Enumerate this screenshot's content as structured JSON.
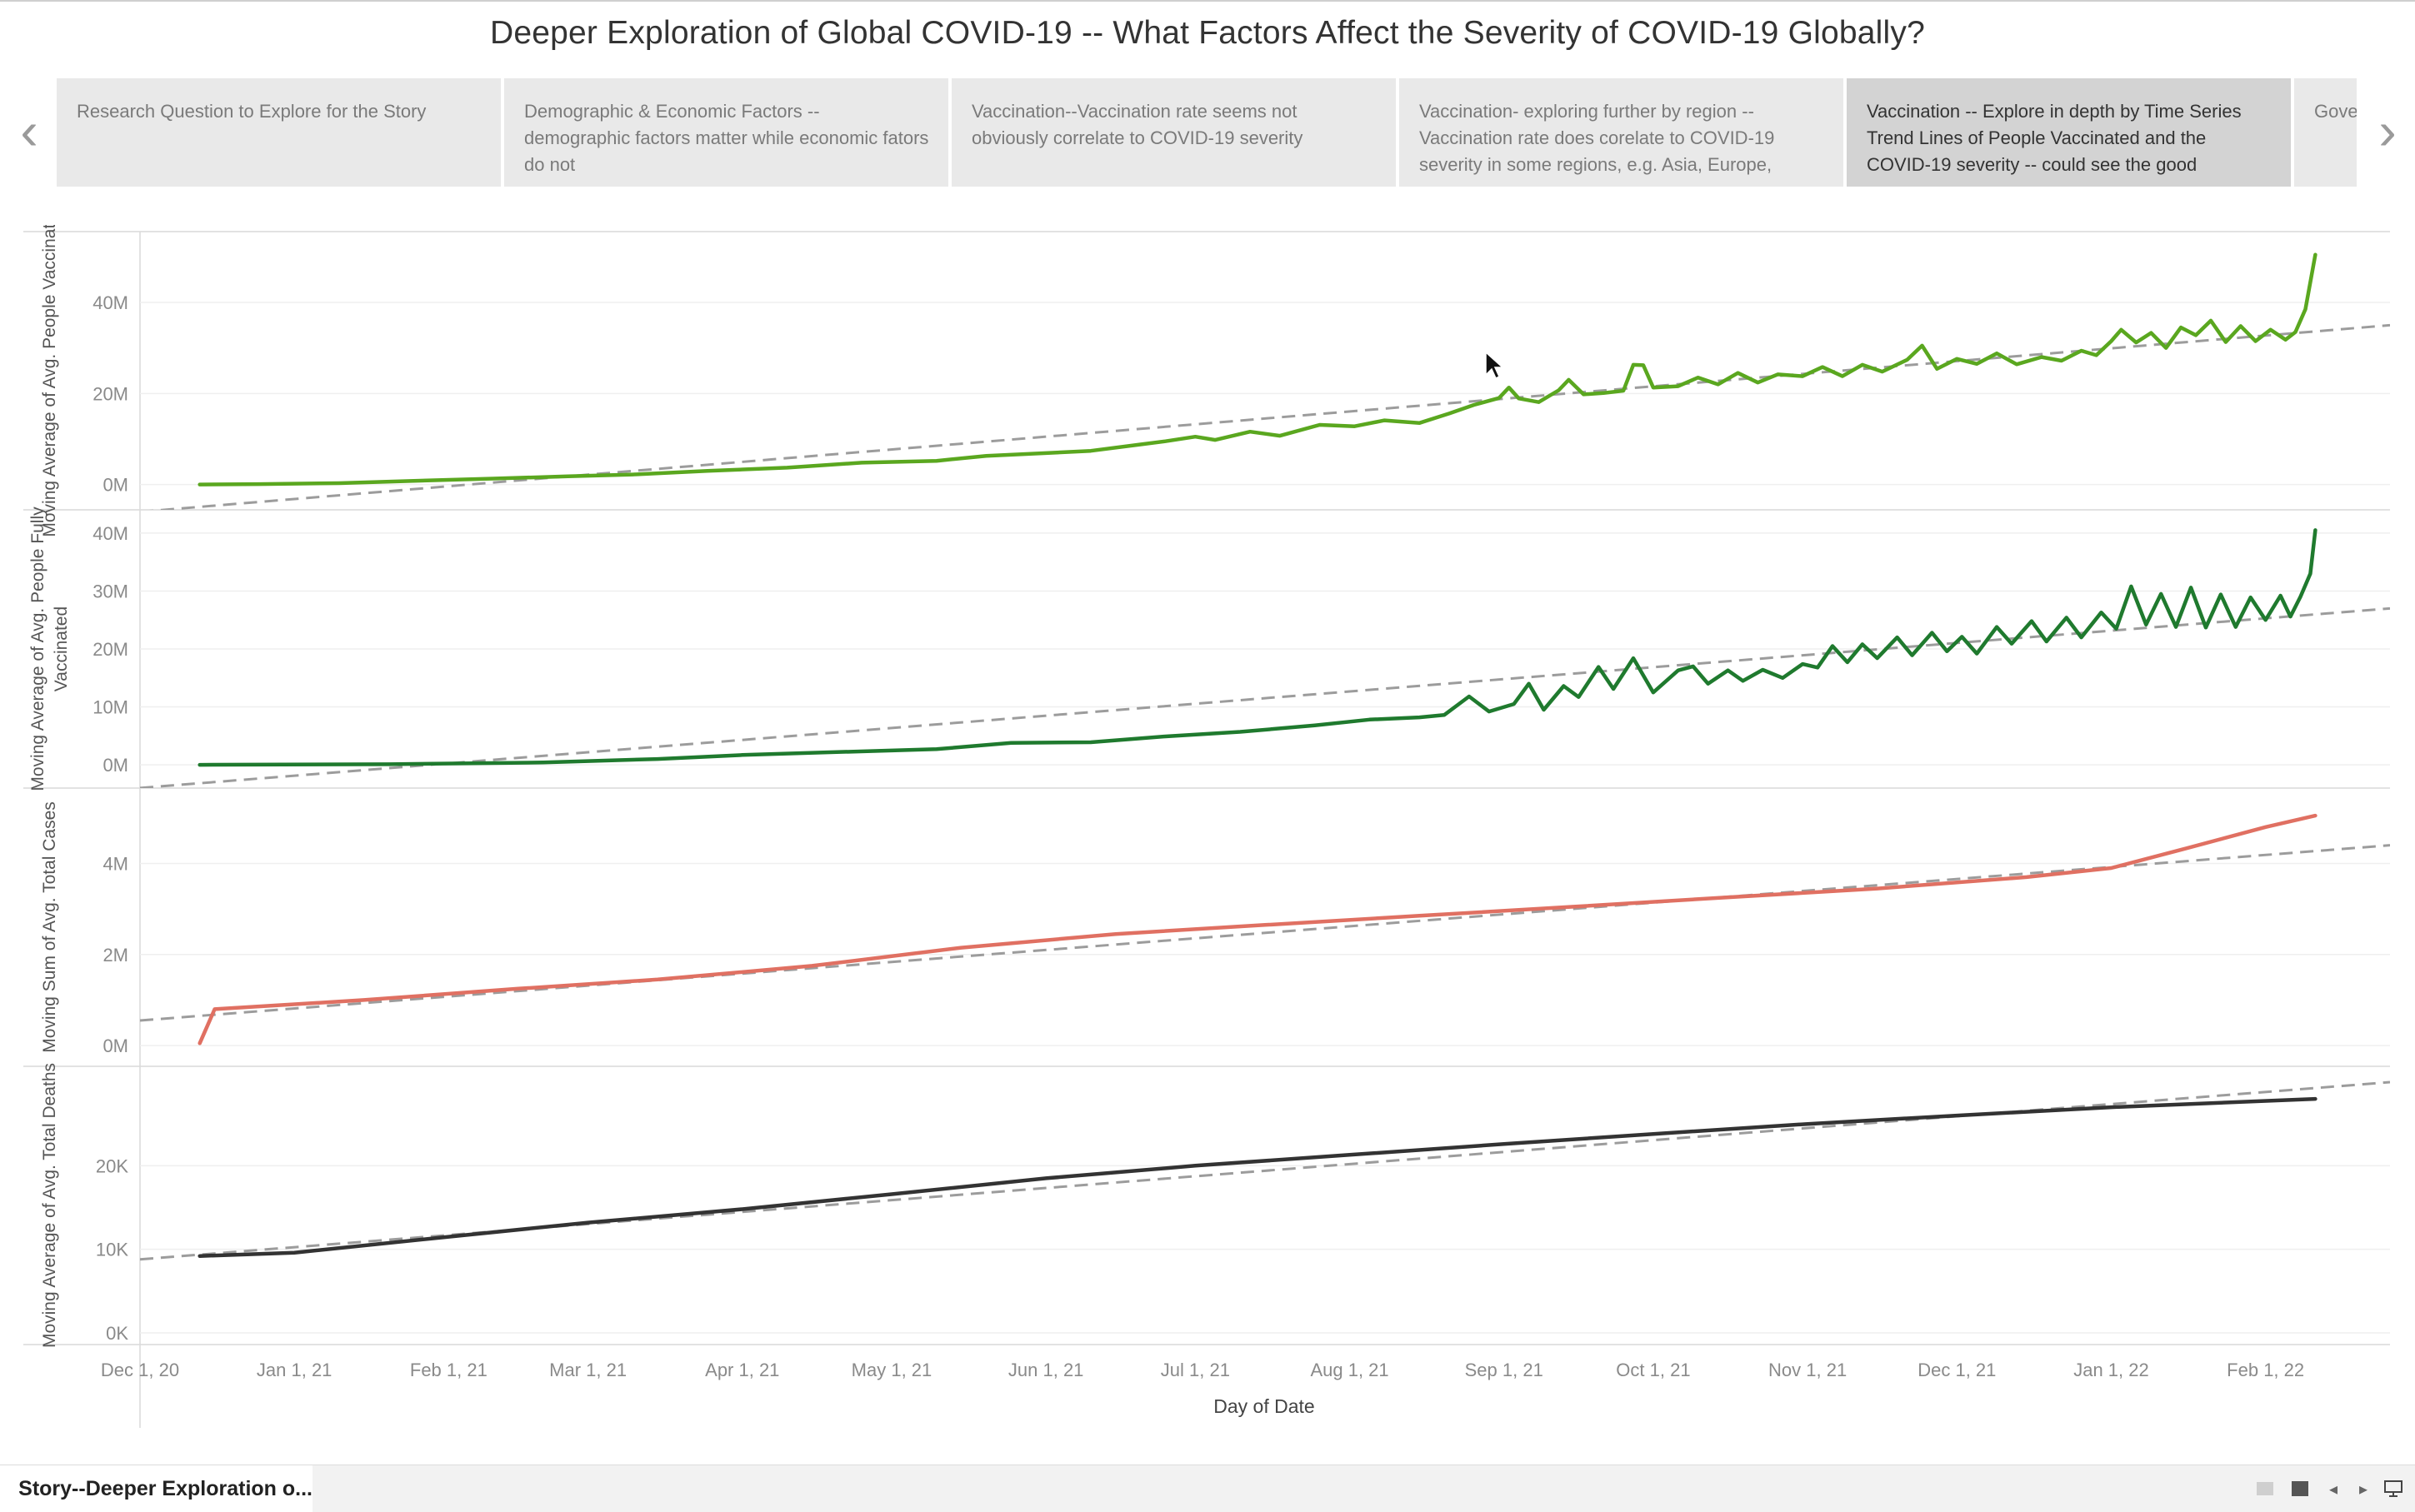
{
  "title": "Deeper Exploration of Global COVID-19 -- What Factors Affect the Severity of COVID-19 Globally?",
  "story_points": [
    {
      "label": "Research Question to Explore for the Story"
    },
    {
      "label": "Demographic & Economic Factors -- demographic factors matter while economic fators do not"
    },
    {
      "label": "Vaccination--Vaccination rate seems not obviously correlate to COVID-19 severity"
    },
    {
      "label": "Vaccination- exploring further by region -- Vaccination rate does corelate to COVID-19 severity in some regions, e.g. Asia, Europe,"
    },
    {
      "label": "Vaccination -- Explore in depth by Time Series Trend Lines of People Vaccinated and the COVID-19 severity -- could see the good",
      "active": true
    },
    {
      "label": "Government measures ... severity"
    }
  ],
  "nav": {
    "prev_icon": "chevron-left-icon",
    "next_icon": "chevron-right-icon"
  },
  "footer": {
    "story_tab_label": "Story--Deeper Exploration o...",
    "story_icon": "book-icon"
  },
  "chart_data": {
    "type": "line",
    "x_label": "Day of Date",
    "x_range": [
      "2020-12-01",
      "2022-02-26"
    ],
    "x_ticks": [
      {
        "date": "2020-12-01",
        "label": "Dec 1, 20"
      },
      {
        "date": "2021-01-01",
        "label": "Jan 1, 21"
      },
      {
        "date": "2021-02-01",
        "label": "Feb 1, 21"
      },
      {
        "date": "2021-03-01",
        "label": "Mar 1, 21"
      },
      {
        "date": "2021-04-01",
        "label": "Apr 1, 21"
      },
      {
        "date": "2021-05-01",
        "label": "May 1, 21"
      },
      {
        "date": "2021-06-01",
        "label": "Jun 1, 21"
      },
      {
        "date": "2021-07-01",
        "label": "Jul 1, 21"
      },
      {
        "date": "2021-08-01",
        "label": "Aug 1, 21"
      },
      {
        "date": "2021-09-01",
        "label": "Sep 1, 21"
      },
      {
        "date": "2021-10-01",
        "label": "Oct 1, 21"
      },
      {
        "date": "2021-11-01",
        "label": "Nov 1, 21"
      },
      {
        "date": "2021-12-01",
        "label": "Dec 1, 21"
      },
      {
        "date": "2022-01-01",
        "label": "Jan 1, 22"
      },
      {
        "date": "2022-02-01",
        "label": "Feb 1, 22"
      }
    ],
    "panels": [
      {
        "ylabel": "Moving Average of Avg. People Vaccinated",
        "ylim": [
          -3000000,
          53000000
        ],
        "yticks": [
          {
            "value": 0,
            "label": "0M"
          },
          {
            "value": 20000000,
            "label": "20M"
          },
          {
            "value": 40000000,
            "label": "40M"
          }
        ],
        "color": "#5aa71f",
        "points": [
          [
            "2020-12-13",
            0
          ],
          [
            "2020-12-25",
            100000
          ],
          [
            "2021-01-10",
            300000
          ],
          [
            "2021-01-25",
            800000
          ],
          [
            "2021-02-10",
            1300000
          ],
          [
            "2021-02-25",
            1800000
          ],
          [
            "2021-03-10",
            2200000
          ],
          [
            "2021-03-25",
            3000000
          ],
          [
            "2021-04-10",
            3700000
          ],
          [
            "2021-04-25",
            4800000
          ],
          [
            "2021-05-10",
            5200000
          ],
          [
            "2021-05-20",
            6300000
          ],
          [
            "2021-06-01",
            6900000
          ],
          [
            "2021-06-10",
            7400000
          ],
          [
            "2021-06-20",
            8800000
          ],
          [
            "2021-06-25",
            9500000
          ],
          [
            "2021-07-01",
            10500000
          ],
          [
            "2021-07-05",
            9800000
          ],
          [
            "2021-07-12",
            11600000
          ],
          [
            "2021-07-18",
            10700000
          ],
          [
            "2021-07-26",
            13100000
          ],
          [
            "2021-08-02",
            12800000
          ],
          [
            "2021-08-08",
            14100000
          ],
          [
            "2021-08-15",
            13500000
          ],
          [
            "2021-08-21",
            15600000
          ],
          [
            "2021-08-26",
            17500000
          ],
          [
            "2021-08-31",
            19000000
          ],
          [
            "2021-09-02",
            21300000
          ],
          [
            "2021-09-04",
            18900000
          ],
          [
            "2021-09-08",
            18100000
          ],
          [
            "2021-09-12",
            20700000
          ],
          [
            "2021-09-14",
            23000000
          ],
          [
            "2021-09-17",
            19800000
          ],
          [
            "2021-09-21",
            20100000
          ],
          [
            "2021-09-25",
            20600000
          ],
          [
            "2021-09-27",
            26300000
          ],
          [
            "2021-09-29",
            26200000
          ],
          [
            "2021-10-01",
            21300000
          ],
          [
            "2021-10-06",
            21600000
          ],
          [
            "2021-10-10",
            23500000
          ],
          [
            "2021-10-14",
            22000000
          ],
          [
            "2021-10-18",
            24500000
          ],
          [
            "2021-10-22",
            22400000
          ],
          [
            "2021-10-26",
            24200000
          ],
          [
            "2021-10-31",
            23800000
          ],
          [
            "2021-11-04",
            25800000
          ],
          [
            "2021-11-08",
            23800000
          ],
          [
            "2021-11-12",
            26300000
          ],
          [
            "2021-11-16",
            24800000
          ],
          [
            "2021-11-21",
            27400000
          ],
          [
            "2021-11-24",
            30500000
          ],
          [
            "2021-11-27",
            25400000
          ],
          [
            "2021-12-01",
            27600000
          ],
          [
            "2021-12-05",
            26500000
          ],
          [
            "2021-12-09",
            28800000
          ],
          [
            "2021-12-13",
            26400000
          ],
          [
            "2021-12-18",
            28000000
          ],
          [
            "2021-12-22",
            27200000
          ],
          [
            "2021-12-26",
            29400000
          ],
          [
            "2021-12-29",
            28400000
          ],
          [
            "2022-01-01",
            31500000
          ],
          [
            "2022-01-03",
            34000000
          ],
          [
            "2022-01-06",
            31200000
          ],
          [
            "2022-01-09",
            33300000
          ],
          [
            "2022-01-12",
            30000000
          ],
          [
            "2022-01-15",
            34500000
          ],
          [
            "2022-01-18",
            32800000
          ],
          [
            "2022-01-21",
            36000000
          ],
          [
            "2022-01-24",
            31300000
          ],
          [
            "2022-01-27",
            34800000
          ],
          [
            "2022-01-30",
            31500000
          ],
          [
            "2022-02-02",
            34000000
          ],
          [
            "2022-02-05",
            31800000
          ],
          [
            "2022-02-07",
            33500000
          ],
          [
            "2022-02-09",
            38500000
          ],
          [
            "2022-02-11",
            50500000
          ]
        ],
        "trend": [
          [
            "2020-12-01",
            -6000000
          ],
          [
            "2022-02-26",
            35000000
          ]
        ]
      },
      {
        "ylabel": "Moving Average of Avg. People Fully Vaccinated",
        "ylim": [
          -2000000,
          42000000
        ],
        "yticks": [
          {
            "value": 0,
            "label": "0M"
          },
          {
            "value": 10000000,
            "label": "10M"
          },
          {
            "value": 20000000,
            "label": "20M"
          },
          {
            "value": 30000000,
            "label": "30M"
          },
          {
            "value": 40000000,
            "label": "40M"
          }
        ],
        "color": "#1f7a2e",
        "points": [
          [
            "2020-12-13",
            0
          ],
          [
            "2021-01-20",
            100000
          ],
          [
            "2021-02-20",
            400000
          ],
          [
            "2021-03-15",
            1000000
          ],
          [
            "2021-04-01",
            1700000
          ],
          [
            "2021-04-20",
            2200000
          ],
          [
            "2021-05-10",
            2700000
          ],
          [
            "2021-05-25",
            3800000
          ],
          [
            "2021-06-10",
            3900000
          ],
          [
            "2021-06-25",
            4900000
          ],
          [
            "2021-07-10",
            5700000
          ],
          [
            "2021-07-25",
            6800000
          ],
          [
            "2021-08-05",
            7800000
          ],
          [
            "2021-08-15",
            8200000
          ],
          [
            "2021-08-20",
            8600000
          ],
          [
            "2021-08-25",
            11800000
          ],
          [
            "2021-08-29",
            9200000
          ],
          [
            "2021-09-03",
            10500000
          ],
          [
            "2021-09-06",
            14000000
          ],
          [
            "2021-09-09",
            9500000
          ],
          [
            "2021-09-13",
            13600000
          ],
          [
            "2021-09-16",
            11700000
          ],
          [
            "2021-09-20",
            16900000
          ],
          [
            "2021-09-23",
            13100000
          ],
          [
            "2021-09-27",
            18400000
          ],
          [
            "2021-10-01",
            12500000
          ],
          [
            "2021-10-06",
            16300000
          ],
          [
            "2021-10-09",
            17000000
          ],
          [
            "2021-10-12",
            14000000
          ],
          [
            "2021-10-16",
            16300000
          ],
          [
            "2021-10-19",
            14500000
          ],
          [
            "2021-10-23",
            16400000
          ],
          [
            "2021-10-27",
            15000000
          ],
          [
            "2021-10-31",
            17400000
          ],
          [
            "2021-11-03",
            16800000
          ],
          [
            "2021-11-06",
            20500000
          ],
          [
            "2021-11-09",
            17700000
          ],
          [
            "2021-11-12",
            20800000
          ],
          [
            "2021-11-15",
            18400000
          ],
          [
            "2021-11-19",
            22000000
          ],
          [
            "2021-11-22",
            18900000
          ],
          [
            "2021-11-26",
            22800000
          ],
          [
            "2021-11-29",
            19600000
          ],
          [
            "2021-12-02",
            22100000
          ],
          [
            "2021-12-05",
            19200000
          ],
          [
            "2021-12-09",
            23800000
          ],
          [
            "2021-12-12",
            20900000
          ],
          [
            "2021-12-16",
            24800000
          ],
          [
            "2021-12-19",
            21300000
          ],
          [
            "2021-12-23",
            25400000
          ],
          [
            "2021-12-26",
            22000000
          ],
          [
            "2021-12-30",
            26300000
          ],
          [
            "2022-01-02",
            23500000
          ],
          [
            "2022-01-05",
            30800000
          ],
          [
            "2022-01-08",
            24200000
          ],
          [
            "2022-01-11",
            29500000
          ],
          [
            "2022-01-14",
            23800000
          ],
          [
            "2022-01-17",
            30600000
          ],
          [
            "2022-01-20",
            23700000
          ],
          [
            "2022-01-23",
            29400000
          ],
          [
            "2022-01-26",
            23800000
          ],
          [
            "2022-01-29",
            28900000
          ],
          [
            "2022-02-01",
            25000000
          ],
          [
            "2022-02-04",
            29200000
          ],
          [
            "2022-02-06",
            25600000
          ],
          [
            "2022-02-08",
            29000000
          ],
          [
            "2022-02-10",
            33000000
          ],
          [
            "2022-02-11",
            40500000
          ]
        ],
        "trend": [
          [
            "2020-12-01",
            -4000000
          ],
          [
            "2022-02-26",
            27000000
          ]
        ]
      },
      {
        "ylabel": "Moving Sum of Avg. Total Cases",
        "ylim": [
          -200000,
          5400000
        ],
        "yticks": [
          {
            "value": 0,
            "label": "0M"
          },
          {
            "value": 2000000,
            "label": "2M"
          },
          {
            "value": 4000000,
            "label": "4M"
          }
        ],
        "color": "#e07062",
        "points": [
          [
            "2020-12-13",
            50000
          ],
          [
            "2020-12-16",
            800000
          ],
          [
            "2021-01-15",
            1000000
          ],
          [
            "2021-02-15",
            1250000
          ],
          [
            "2021-03-15",
            1450000
          ],
          [
            "2021-04-15",
            1750000
          ],
          [
            "2021-05-15",
            2150000
          ],
          [
            "2021-06-15",
            2450000
          ],
          [
            "2021-07-15",
            2650000
          ],
          [
            "2021-08-15",
            2850000
          ],
          [
            "2021-09-15",
            3050000
          ],
          [
            "2021-10-15",
            3250000
          ],
          [
            "2021-11-15",
            3450000
          ],
          [
            "2021-12-15",
            3700000
          ],
          [
            "2022-01-01",
            3900000
          ],
          [
            "2022-01-15",
            4300000
          ],
          [
            "2022-02-01",
            4800000
          ],
          [
            "2022-02-11",
            5050000
          ]
        ],
        "trend": [
          [
            "2020-12-01",
            550000
          ],
          [
            "2022-02-26",
            4400000
          ]
        ]
      },
      {
        "ylabel": "Moving Average of Avg. Total Deaths",
        "ylim": [
          0,
          30500
        ],
        "yticks": [
          {
            "value": 0,
            "label": "0K"
          },
          {
            "value": 10000,
            "label": "10K"
          },
          {
            "value": 20000,
            "label": "20K"
          }
        ],
        "color": "#333333",
        "points": [
          [
            "2020-12-13",
            9200
          ],
          [
            "2021-01-01",
            9600
          ],
          [
            "2021-02-01",
            11500
          ],
          [
            "2021-03-01",
            13200
          ],
          [
            "2021-04-01",
            14800
          ],
          [
            "2021-05-01",
            16600
          ],
          [
            "2021-06-01",
            18500
          ],
          [
            "2021-07-01",
            20000
          ],
          [
            "2021-08-01",
            21300
          ],
          [
            "2021-09-01",
            22600
          ],
          [
            "2021-10-01",
            23800
          ],
          [
            "2021-11-01",
            25000
          ],
          [
            "2021-12-01",
            26000
          ],
          [
            "2022-01-01",
            27000
          ],
          [
            "2022-02-11",
            28000
          ]
        ],
        "trend": [
          [
            "2020-12-01",
            8800
          ],
          [
            "2022-02-26",
            30000
          ]
        ]
      }
    ]
  }
}
